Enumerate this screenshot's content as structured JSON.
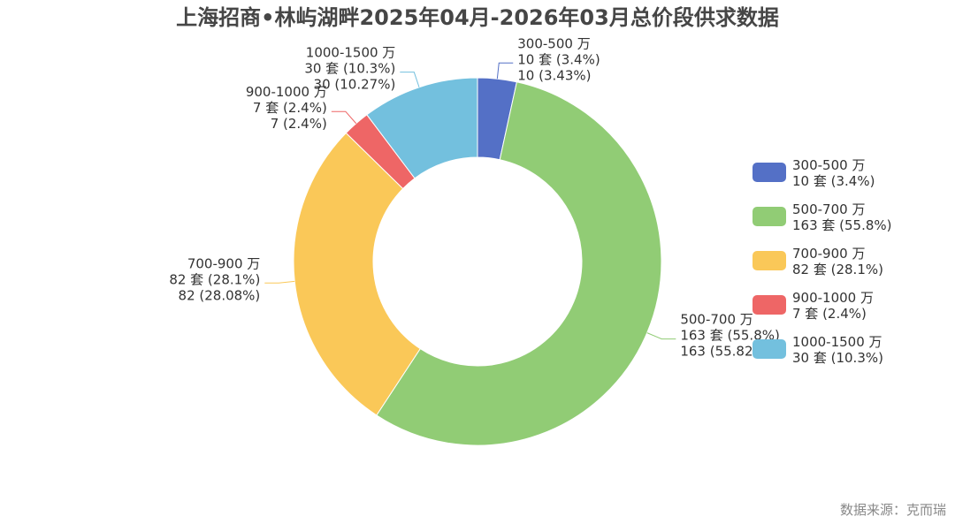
{
  "chart_data": {
    "type": "pie",
    "variant": "donut",
    "title": "上海招商•林屿湖畔2025年04月-2026年03月总价段供求数据",
    "unit": "套",
    "slices": [
      {
        "name": "300-500 万",
        "value": 10,
        "percent_label": "3.4%",
        "percent_precise": "3.43%",
        "color": "#5470c6"
      },
      {
        "name": "500-700 万",
        "value": 163,
        "percent_label": "55.8%",
        "percent_precise": "55.82%",
        "color": "#91cc75"
      },
      {
        "name": "700-900 万",
        "value": 82,
        "percent_label": "28.1%",
        "percent_precise": "28.08%",
        "color": "#fac858"
      },
      {
        "name": "900-1000 万",
        "value": 7,
        "percent_label": "2.4%",
        "percent_precise": "2.4%",
        "color": "#ee6666"
      },
      {
        "name": "1000-1500 万",
        "value": 30,
        "percent_label": "10.3%",
        "percent_precise": "10.27%",
        "color": "#73c0de"
      }
    ],
    "legend_position": "right",
    "source": "数据来源：克而瑞"
  }
}
